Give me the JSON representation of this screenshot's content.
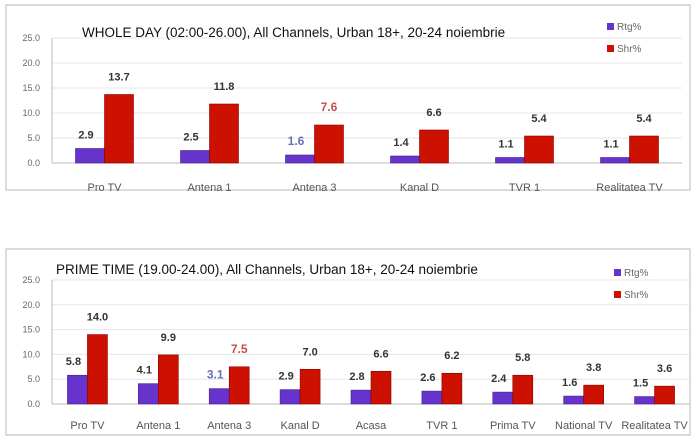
{
  "chart_data": [
    {
      "type": "bar",
      "title": "WHOLE DAY (02:00-26.00), All Channels,  Urban 18+, 20-24 noiembrie",
      "categories": [
        "Pro TV",
        "Antena 1",
        "Antena 3",
        "Kanal D",
        "TVR 1",
        "Realitatea TV"
      ],
      "series": [
        {
          "name": "Rtg%",
          "color": "#6633cc",
          "values": [
            2.9,
            2.5,
            1.6,
            1.4,
            1.1,
            1.1
          ]
        },
        {
          "name": "Shr%",
          "color": "#cc1100",
          "values": [
            13.7,
            11.8,
            7.6,
            6.6,
            5.4,
            5.4
          ]
        }
      ],
      "highlight_category": "Antena 3",
      "highlight_colors": {
        "Rtg%": "#6670b8",
        "Shr%": "#c0504d"
      },
      "ylim": [
        0,
        25
      ],
      "yticks": [
        "0.0",
        "5.0",
        "10.0",
        "15.0",
        "20.0",
        "25.0"
      ],
      "legend": "top-right",
      "grid": true
    },
    {
      "type": "bar",
      "title": "PRIME TIME (19.00-24.00), All Channels, Urban 18+, 20-24 noiembrie",
      "categories": [
        "Pro TV",
        "Antena 1",
        "Antena 3",
        "Kanal D",
        "Acasa",
        "TVR 1",
        "Prima TV",
        "National TV",
        "Realitatea TV"
      ],
      "series": [
        {
          "name": "Rtg%",
          "color": "#6633cc",
          "values": [
            5.8,
            4.1,
            3.1,
            2.9,
            2.8,
            2.6,
            2.4,
            1.6,
            1.5
          ]
        },
        {
          "name": "Shr%",
          "color": "#cc1100",
          "values": [
            14.0,
            9.9,
            7.5,
            7.0,
            6.6,
            6.2,
            5.8,
            3.8,
            3.6
          ]
        }
      ],
      "highlight_category": "Antena 3",
      "highlight_colors": {
        "Rtg%": "#6670b8",
        "Shr%": "#c0504d"
      },
      "ylim": [
        0,
        25
      ],
      "yticks": [
        "0.0",
        "5.0",
        "10.0",
        "15.0",
        "20.0",
        "25.0"
      ],
      "legend": "top-right",
      "grid": true
    }
  ]
}
